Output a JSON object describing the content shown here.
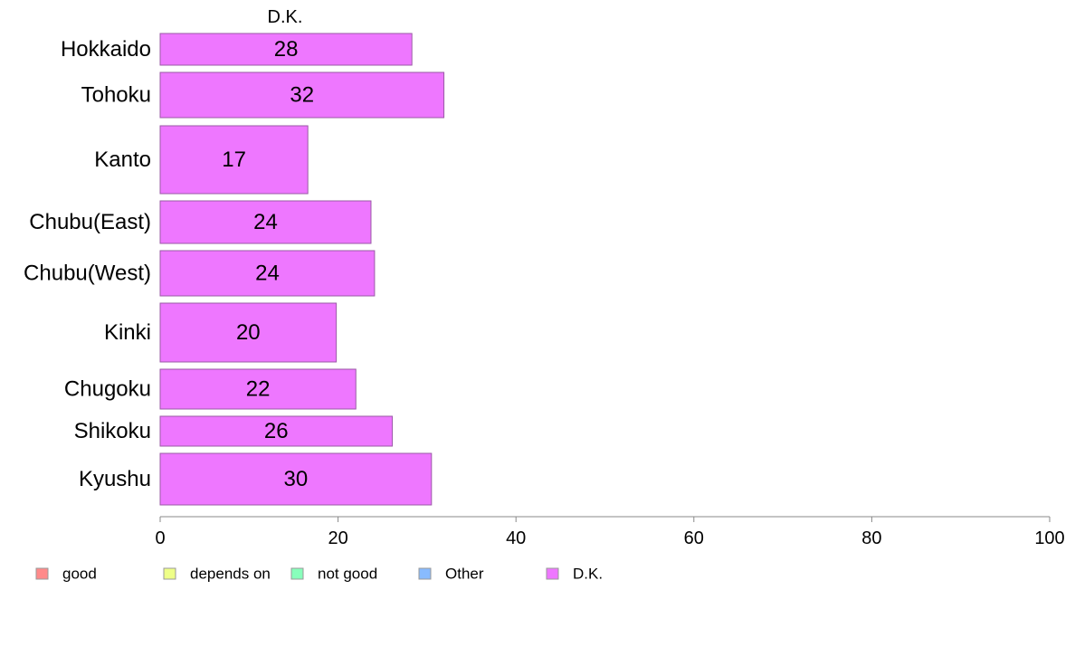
{
  "chart_data": {
    "type": "bar",
    "orientation": "horizontal",
    "title": "D.K.",
    "categories": [
      "Hokkaido",
      "Tohoku",
      "Kanto",
      "Chubu(East)",
      "Chubu(West)",
      "Kinki",
      "Chugoku",
      "Shikoku",
      "Kyushu"
    ],
    "series": [
      {
        "name": "D.K.",
        "values": [
          28.3,
          31.9,
          16.6,
          23.7,
          24.1,
          19.8,
          22.0,
          26.1,
          30.5
        ],
        "labels": [
          "28",
          "32",
          "17",
          "24",
          "24",
          "20",
          "22",
          "26",
          "30"
        ],
        "color": "#ee77ff"
      }
    ],
    "xlim": [
      0,
      100
    ],
    "xticks": [
      "0",
      "20",
      "40",
      "60",
      "80",
      "100"
    ],
    "xlabel": "",
    "ylabel": "",
    "grid": false,
    "legend": {
      "placement": "bottom",
      "entries": [
        {
          "label": "good",
          "color": "#ff8a8a"
        },
        {
          "label": "depends on",
          "color": "#eeff88"
        },
        {
          "label": "not good",
          "color": "#88ffbb"
        },
        {
          "label": "Other",
          "color": "#88bbff"
        },
        {
          "label": "D.K.",
          "color": "#ee77ff"
        }
      ]
    },
    "colors": {
      "bar_stroke": "#9a5aa6",
      "axis": "#888888"
    }
  }
}
